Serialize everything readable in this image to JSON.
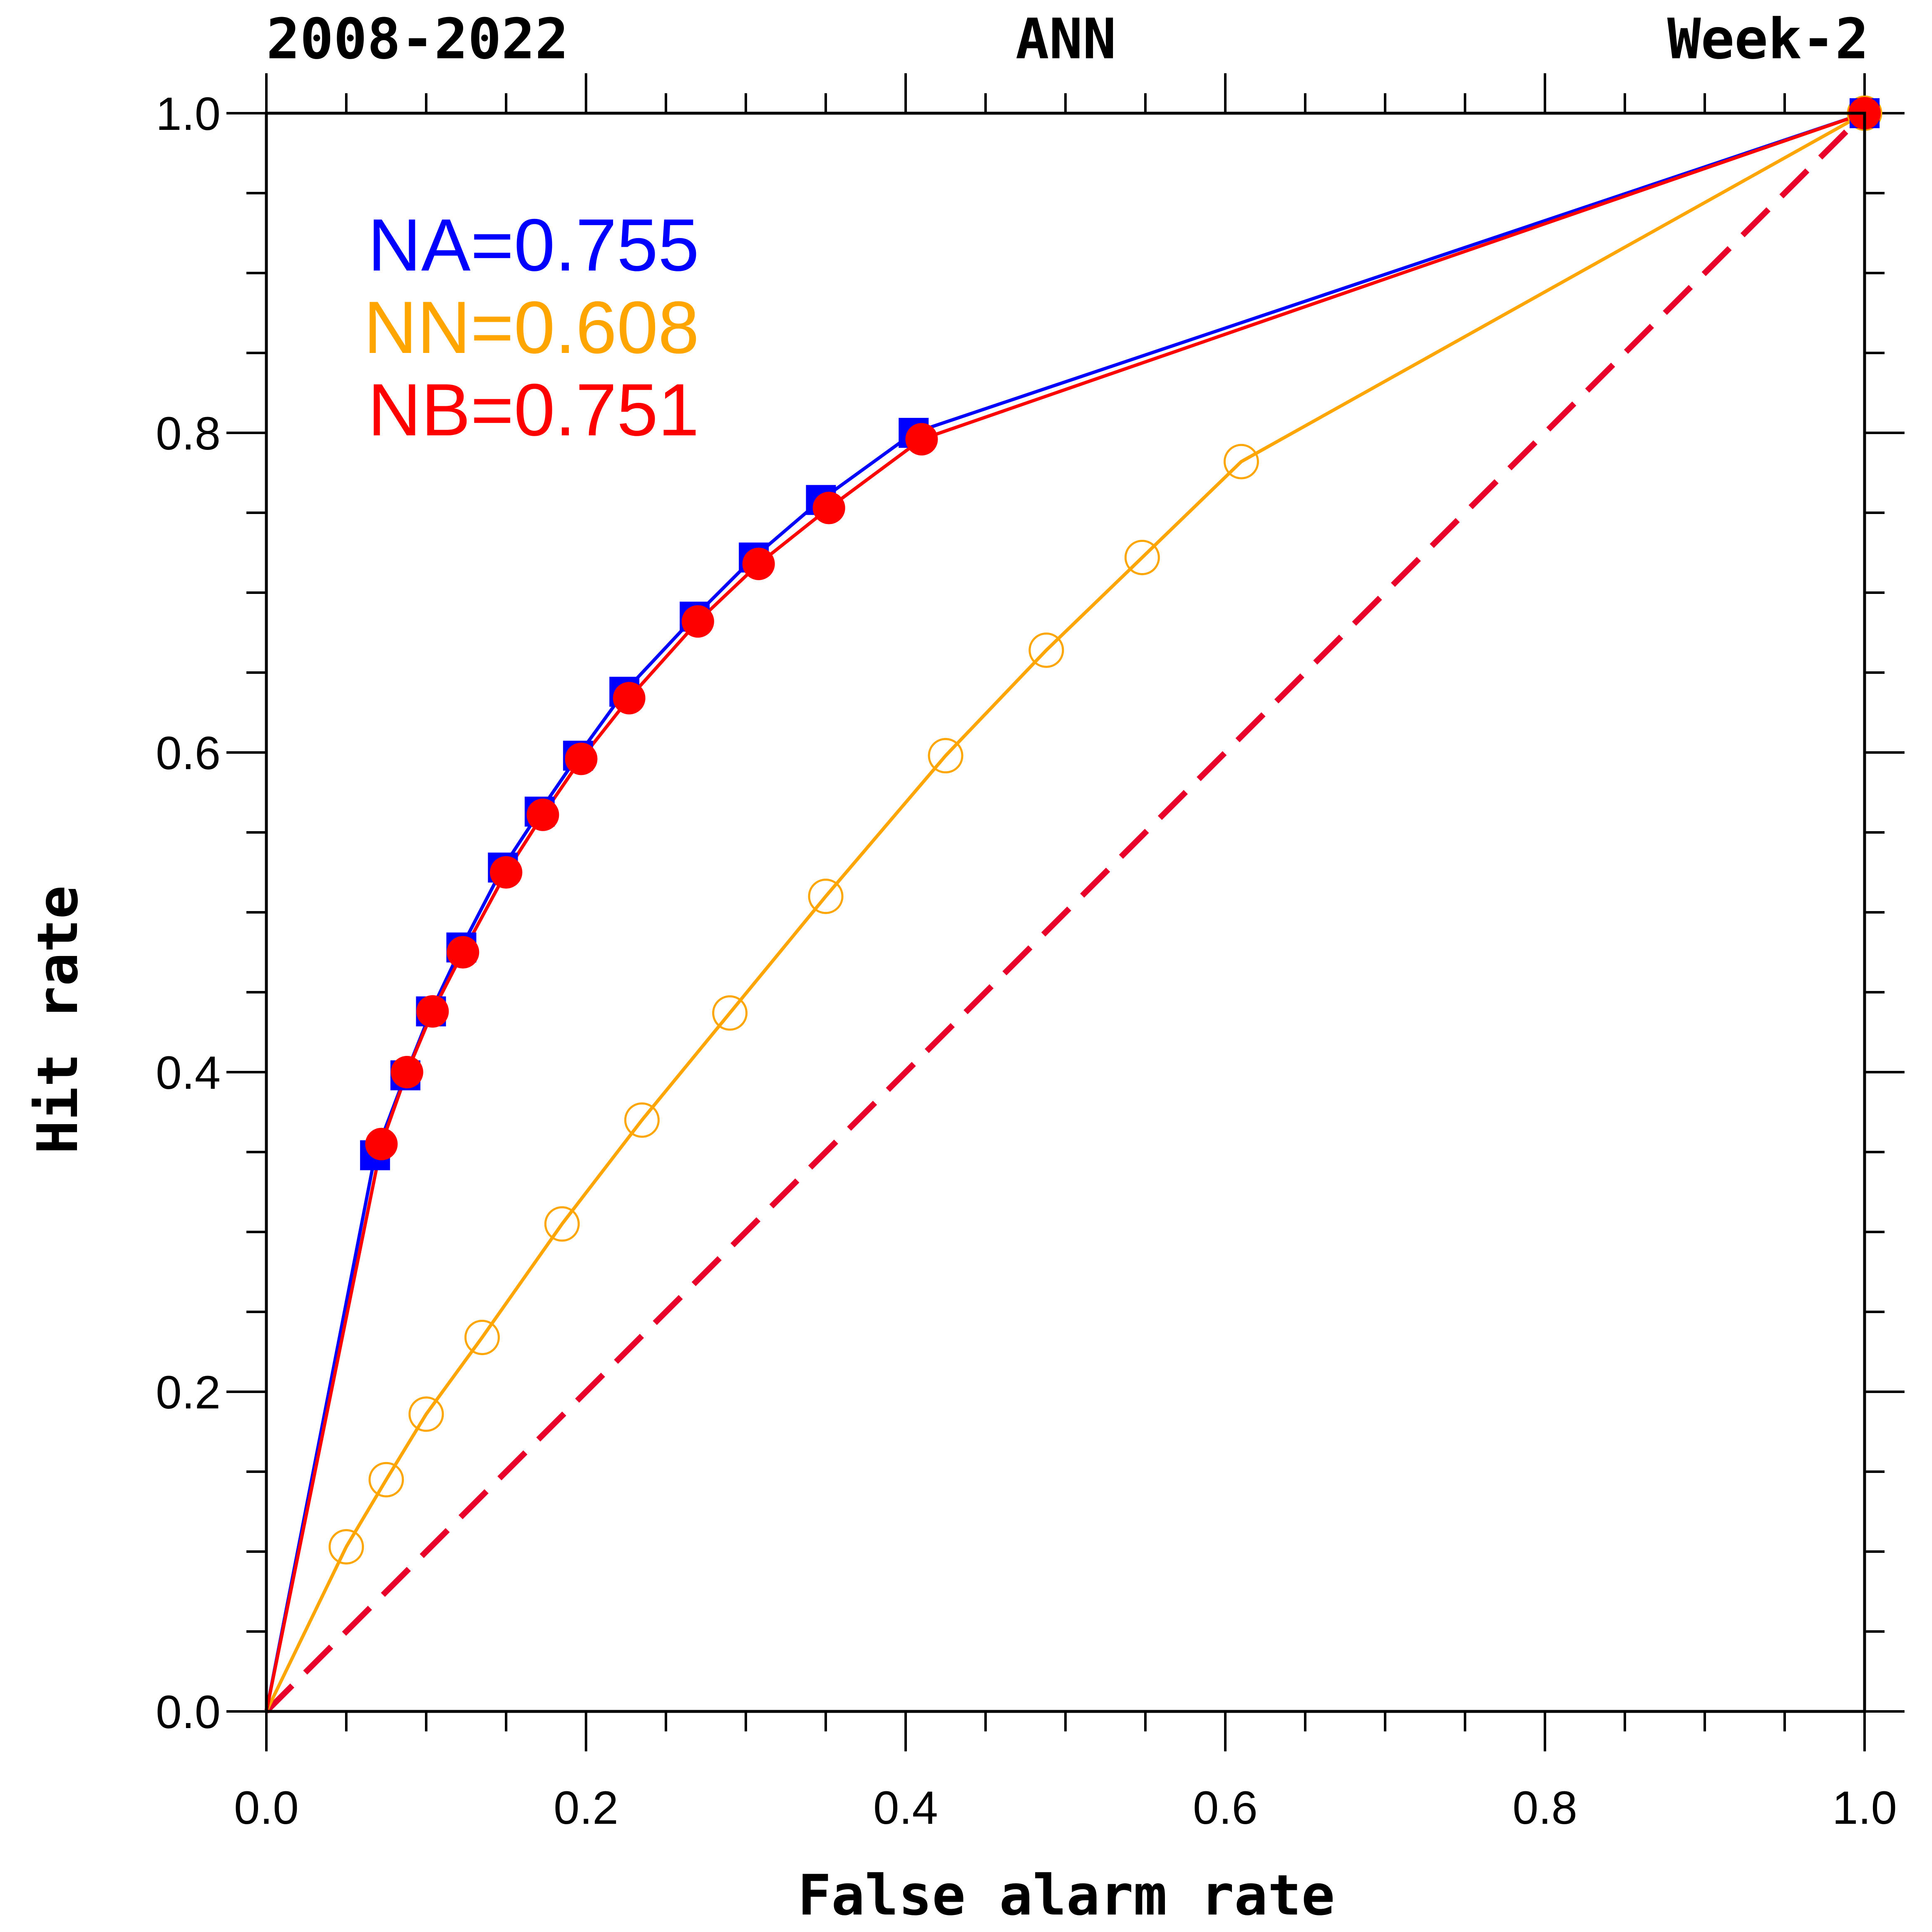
{
  "chart_data": {
    "type": "line",
    "title_left": "2008-2022",
    "title_center": "ANN",
    "title_right": "Week-2",
    "xlabel": "False alarm rate",
    "ylabel": "Hit rate",
    "xlim": [
      0,
      1
    ],
    "ylim": [
      0,
      1
    ],
    "x_ticks": [
      "0.0",
      "0.2",
      "0.4",
      "0.6",
      "0.8",
      "1.0"
    ],
    "y_ticks": [
      "0.0",
      "0.2",
      "0.4",
      "0.6",
      "0.8",
      "1.0"
    ],
    "legend": [
      {
        "text": "NA=0.755",
        "color": "#0000ff"
      },
      {
        "text": "NN=0.608",
        "color": "#ffa500"
      },
      {
        "text": "NB=0.751",
        "color": "#ff0000"
      }
    ],
    "series": [
      {
        "name": "NA",
        "color": "#0000ff",
        "marker": "filled-square",
        "x": [
          0,
          0.068,
          0.087,
          0.103,
          0.122,
          0.148,
          0.171,
          0.195,
          0.224,
          0.268,
          0.305,
          0.347,
          0.405,
          1.0
        ],
        "y": [
          0,
          0.348,
          0.398,
          0.438,
          0.478,
          0.528,
          0.563,
          0.598,
          0.638,
          0.685,
          0.722,
          0.758,
          0.8,
          1.0
        ]
      },
      {
        "name": "NN",
        "color": "#ffa500",
        "marker": "open-circle",
        "x": [
          0,
          0.05,
          0.075,
          0.1,
          0.135,
          0.185,
          0.235,
          0.29,
          0.35,
          0.425,
          0.488,
          0.548,
          0.61,
          1.0
        ],
        "y": [
          0,
          0.103,
          0.145,
          0.186,
          0.234,
          0.305,
          0.37,
          0.437,
          0.51,
          0.598,
          0.664,
          0.722,
          0.782,
          1.0
        ]
      },
      {
        "name": "NB",
        "color": "#ff0000",
        "marker": "filled-circle",
        "x": [
          0,
          0.072,
          0.088,
          0.104,
          0.123,
          0.15,
          0.173,
          0.197,
          0.227,
          0.27,
          0.308,
          0.352,
          0.41,
          1.0
        ],
        "y": [
          0,
          0.355,
          0.4,
          0.438,
          0.475,
          0.525,
          0.561,
          0.596,
          0.634,
          0.682,
          0.718,
          0.753,
          0.796,
          1.0
        ]
      }
    ],
    "reference_line": {
      "name": "no-skill diagonal",
      "color": "#e8002a",
      "style": "dashed",
      "x": [
        0,
        1
      ],
      "y": [
        0,
        1
      ]
    }
  }
}
